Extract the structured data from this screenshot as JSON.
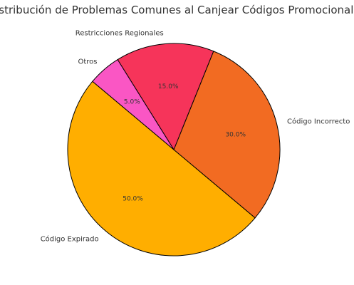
{
  "chart_data": {
    "type": "pie",
    "title": "Distribución de Problemas Comunes al Canjear Códigos Promocionales",
    "slices": [
      {
        "label": "Código Expirado",
        "value": 50.0,
        "pct_label": "50.0%",
        "color": "#ffae00"
      },
      {
        "label": "Código Incorrecto",
        "value": 30.0,
        "pct_label": "30.0%",
        "color": "#f26b22"
      },
      {
        "label": "Restricciones Regionales",
        "value": 15.0,
        "pct_label": "15.0%",
        "color": "#f6345a"
      },
      {
        "label": "Otros",
        "value": 5.0,
        "pct_label": "5.0%",
        "color": "#fa56c4"
      }
    ],
    "start_angle_deg": 140,
    "direction": "counterclockwise",
    "legend": "none"
  }
}
